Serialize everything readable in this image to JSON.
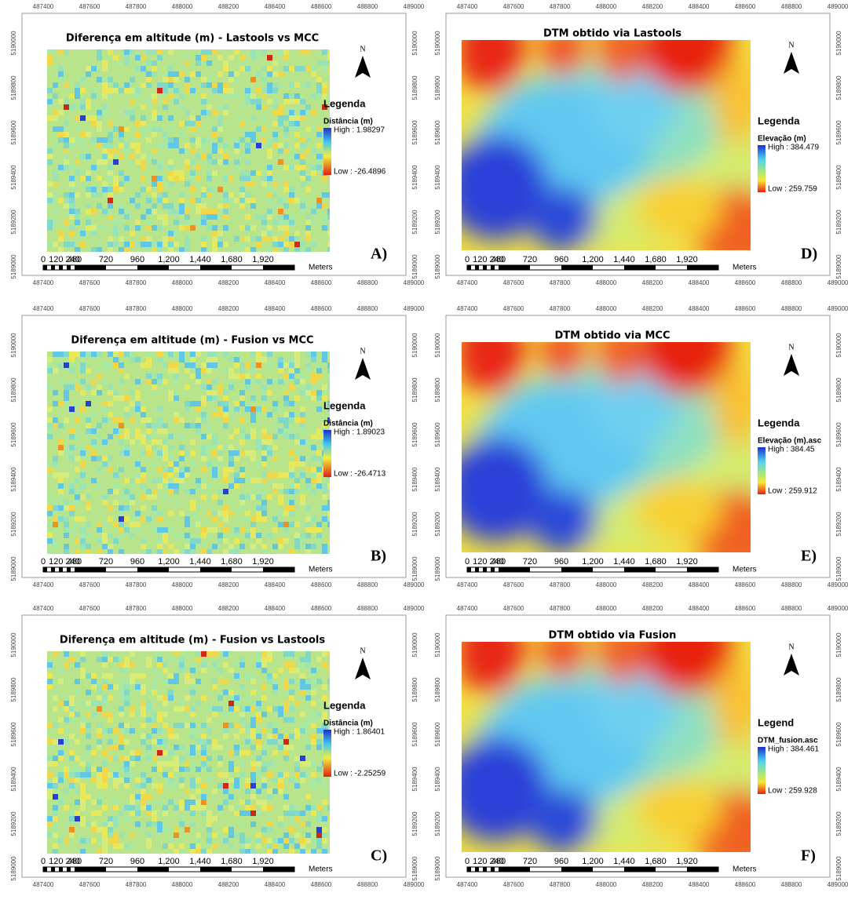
{
  "x_ticks": [
    487400,
    487600,
    487800,
    488000,
    488200,
    488400,
    488600,
    488800,
    489000
  ],
  "y_ticks": [
    5189000,
    5189200,
    5189400,
    5189600,
    5189800,
    5190000
  ],
  "scale_labels": [
    "0",
    "120 240",
    "480",
    "720",
    "960",
    "1,200",
    "1,440",
    "1,680",
    "1,920"
  ],
  "scale_unit": "Meters",
  "north": "N",
  "panels": [
    {
      "letter": "A)",
      "title": "Diferença em altitude (m) - Lastools vs MCC",
      "legend_title": "Legenda",
      "field": "Distância (m)",
      "high": "High : 1.98297",
      "low": "Low : -26.4896"
    },
    {
      "letter": "B)",
      "title": "Diferença em altitude (m) - Fusion vs MCC",
      "legend_title": "Legenda",
      "field": "Distância (m)",
      "high": "High : 1.89023",
      "low": "Low : -26.4713"
    },
    {
      "letter": "C)",
      "title": "Diferença em altitude (m) - Fusion vs Lastools",
      "legend_title": "Legenda",
      "field": "Distância (m)",
      "high": "High : 1.86401",
      "low": "Low : -2.25259"
    },
    {
      "letter": "D)",
      "title": "DTM obtido via Lastools",
      "legend_title": "Legenda",
      "field": "Elevação (m)",
      "high": "High : 384.479",
      "low": "Low : 259.759"
    },
    {
      "letter": "E)",
      "title": "DTM obtido via MCC",
      "legend_title": "Legenda",
      "field": "Elevação (m).asc",
      "high": "High : 384.45",
      "low": "Low : 259.912"
    },
    {
      "letter": "F)",
      "title": "DTM obtido via Fusion",
      "legend_title": "Legend",
      "field": "DTM_fusion.asc",
      "high": "High : 384.461",
      "low": "Low : 259.928"
    }
  ]
}
